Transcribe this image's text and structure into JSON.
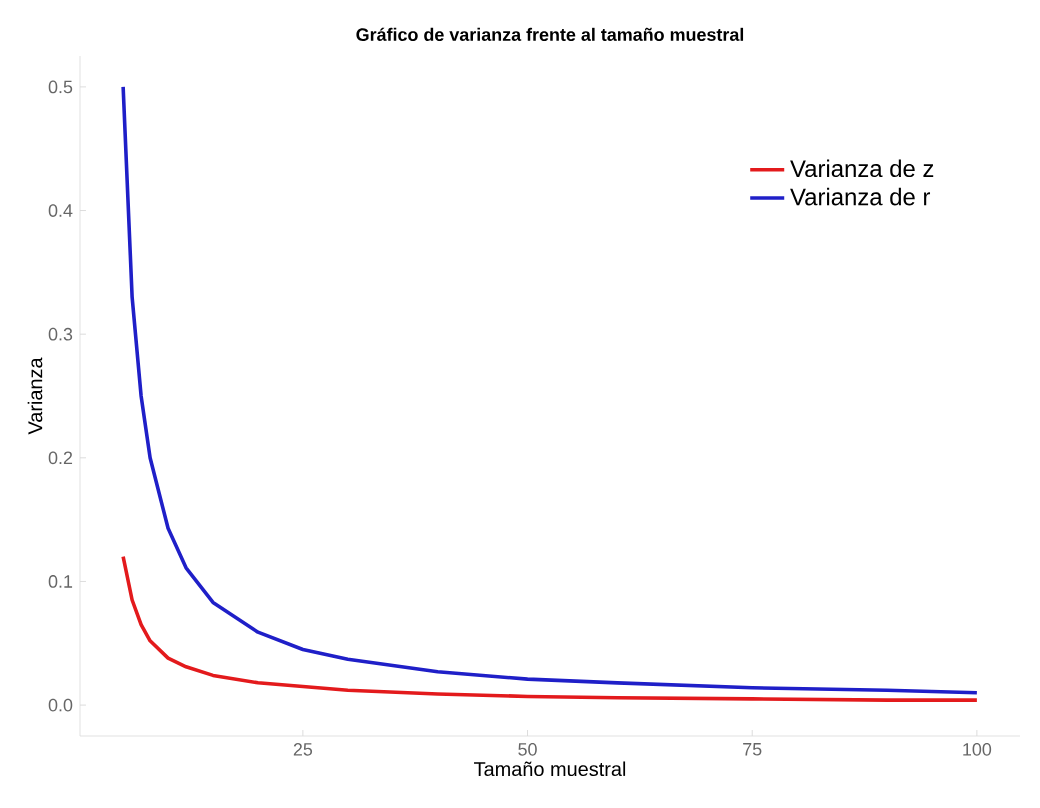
{
  "chart_data": {
    "type": "line",
    "title": "Gráfico de varianza frente al tamaño muestral",
    "xlabel": "Tamaño muestral",
    "ylabel": "Varianza",
    "x": [
      5,
      6,
      7,
      8,
      10,
      12,
      15,
      20,
      25,
      30,
      40,
      50,
      60,
      75,
      90,
      100
    ],
    "series": [
      {
        "name": "Varianza de z",
        "color": "#e31a1c",
        "values": [
          0.12,
          0.085,
          0.065,
          0.052,
          0.038,
          0.031,
          0.024,
          0.018,
          0.015,
          0.012,
          0.009,
          0.007,
          0.006,
          0.005,
          0.004,
          0.004
        ]
      },
      {
        "name": "Varianza de r",
        "color": "#1f1fc8",
        "values": [
          0.5,
          0.33,
          0.25,
          0.2,
          0.143,
          0.111,
          0.083,
          0.059,
          0.045,
          0.037,
          0.027,
          0.021,
          0.018,
          0.014,
          0.012,
          0.01
        ]
      }
    ],
    "xlim": [
      0.2,
      104.8
    ],
    "ylim": [
      -0.025,
      0.525
    ],
    "xticks": [
      25,
      50,
      75,
      100
    ],
    "yticks": [
      {
        "value": 0,
        "label": "0.0"
      },
      {
        "value": 0.1,
        "label": "0.1"
      },
      {
        "value": 0.2,
        "label": "0.2"
      },
      {
        "value": 0.3,
        "label": "0.3"
      },
      {
        "value": 0.4,
        "label": "0.4"
      },
      {
        "value": 0.5,
        "label": "0.5"
      }
    ],
    "legend": "top right",
    "grid": false,
    "marker": "none",
    "line_style": "solid"
  }
}
